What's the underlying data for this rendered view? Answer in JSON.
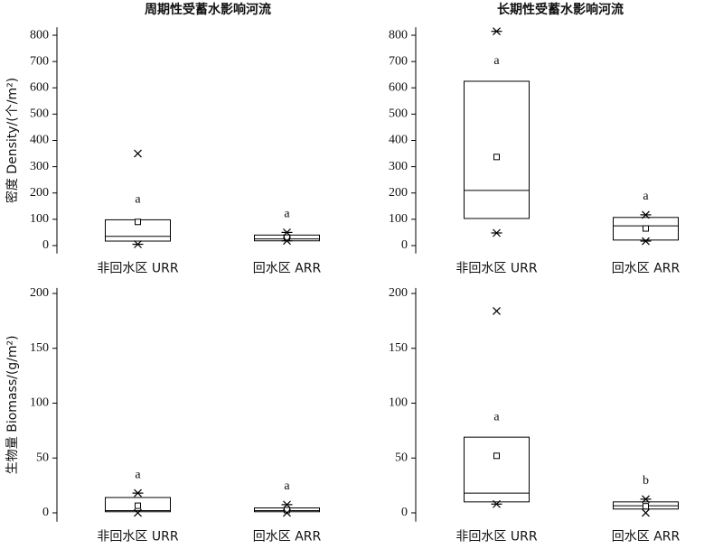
{
  "chart_data": [
    {
      "type": "box",
      "title": "周期性受蓄水影响河流",
      "ylabel": "密度 Density/(个/m²)",
      "categories": [
        "非回水区 URR",
        "回水区 ARR"
      ],
      "ylim": [
        -30,
        830
      ],
      "yticks": [
        0,
        100,
        200,
        300,
        400,
        500,
        600,
        700,
        800
      ],
      "boxes": [
        {
          "q1": 17,
          "median": 35,
          "q3": 98,
          "mean": 90,
          "high": 350,
          "low": 5,
          "high_marker": "cross",
          "low_marker": "star",
          "letter": "a"
        },
        {
          "q1": 18,
          "median": 25,
          "q3": 40,
          "mean": 30,
          "high": 50,
          "low": 18,
          "high_marker": "star",
          "low_marker": "star",
          "letter": "a"
        }
      ]
    },
    {
      "type": "box",
      "title": "长期性受蓄水影响河流",
      "categories": [
        "非回水区 URR",
        "回水区 ARR"
      ],
      "ylim": [
        -30,
        830
      ],
      "yticks": [
        0,
        100,
        200,
        300,
        400,
        500,
        600,
        700,
        800
      ],
      "boxes": [
        {
          "q1": 103,
          "median": 210,
          "q3": 625,
          "mean": 337,
          "high": 815,
          "low": 48,
          "high_marker": "star",
          "low_marker": "star",
          "letter": "a"
        },
        {
          "q1": 21,
          "median": 75,
          "q3": 107,
          "mean": 65,
          "high": 117,
          "low": 17,
          "high_marker": "star",
          "low_marker": "star",
          "letter": "a"
        }
      ]
    },
    {
      "type": "box",
      "ylabel": "生物量 Biomass/(g/m²)",
      "categories": [
        "非回水区 URR",
        "回水区 ARR"
      ],
      "ylim": [
        -8,
        205
      ],
      "yticks": [
        0,
        50,
        100,
        150,
        200
      ],
      "boxes": [
        {
          "q1": 1,
          "median": 2,
          "q3": 14,
          "mean": 6.5,
          "high": 18,
          "low": 0,
          "high_marker": "star",
          "low_marker": "cross",
          "letter": "a"
        },
        {
          "q1": 1,
          "median": 2,
          "q3": 4.5,
          "mean": 2.5,
          "high": 7.5,
          "low": 0,
          "high_marker": "star",
          "low_marker": "cross",
          "letter": "a"
        }
      ]
    },
    {
      "type": "box",
      "categories": [
        "非回水区 URR",
        "回水区 ARR"
      ],
      "ylim": [
        -8,
        205
      ],
      "yticks": [
        0,
        50,
        100,
        150,
        200
      ],
      "boxes": [
        {
          "q1": 10,
          "median": 18,
          "q3": 69,
          "mean": 52,
          "high": 184,
          "low": 8,
          "high_marker": "cross",
          "low_marker": "star",
          "letter": "a"
        },
        {
          "q1": 3.5,
          "median": 6.5,
          "q3": 10,
          "mean": 6,
          "high": 12.5,
          "low": 0,
          "high_marker": "star",
          "low_marker": "cross",
          "letter": "b"
        }
      ]
    }
  ]
}
